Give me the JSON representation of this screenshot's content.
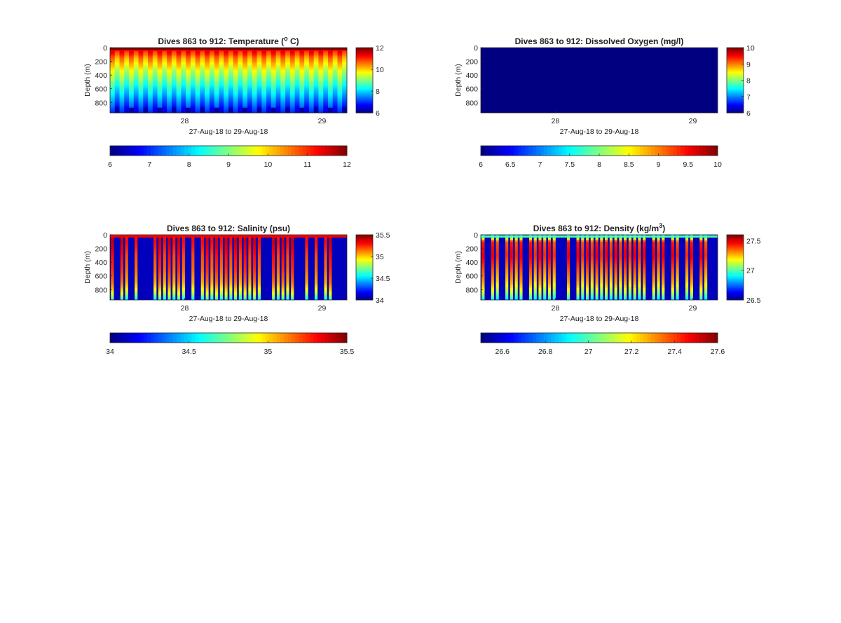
{
  "colormap": "jet",
  "chart_data": [
    {
      "type": "heatmap",
      "title": "Dives 863 to 912: Temperature (",
      "title_sup": "o",
      "title_end": " C)",
      "variable": "temperature",
      "xlabel": "27-Aug-18 to 29-Aug-18",
      "ylabel": "Depth (m)",
      "xticks": [
        "28",
        "29"
      ],
      "yticks": [
        "0",
        "200",
        "400",
        "600",
        "800"
      ],
      "ylim": [
        0,
        950
      ],
      "clim": [
        6,
        12
      ],
      "side_colorbar_ticks": [
        "12",
        "10",
        "8",
        "6"
      ],
      "bottom_colorbar_ticks": [
        "6",
        "7",
        "8",
        "9",
        "10",
        "11",
        "12"
      ],
      "dives": 50,
      "profile": {
        "depth": [
          0,
          50,
          150,
          300,
          500,
          700,
          850,
          950
        ],
        "value": [
          11.8,
          11.2,
          10.4,
          9.6,
          8.7,
          7.8,
          7.1,
          6.6
        ]
      }
    },
    {
      "type": "heatmap",
      "title": "Dives 863 to 912: Dissolved Oxygen (mg/l)",
      "variable": "dissolved_oxygen",
      "xlabel": "27-Aug-18 to 29-Aug-18",
      "ylabel": "Depth (m)",
      "xticks": [
        "28",
        "29"
      ],
      "yticks": [
        "0",
        "200",
        "400",
        "600",
        "800"
      ],
      "ylim": [
        0,
        950
      ],
      "clim": [
        6,
        10
      ],
      "side_colorbar_ticks": [
        "10",
        "9",
        "8",
        "7",
        "6"
      ],
      "bottom_colorbar_ticks": [
        "6",
        "6.5",
        "7",
        "7.5",
        "8",
        "8.5",
        "9",
        "9.5",
        "10"
      ],
      "dives": 50,
      "uniform_value": 6
    },
    {
      "type": "heatmap",
      "title": "Dives 863 to 912: Salinity (psu)",
      "variable": "salinity",
      "xlabel": "27-Aug-18 to 29-Aug-18",
      "ylabel": "Depth (m)",
      "xticks": [
        "28",
        "29"
      ],
      "yticks": [
        "0",
        "200",
        "400",
        "600",
        "800"
      ],
      "ylim": [
        0,
        950
      ],
      "clim": [
        34,
        35.5
      ],
      "side_colorbar_ticks": [
        "35.5",
        "35",
        "34.5",
        "34"
      ],
      "bottom_colorbar_ticks": [
        "34",
        "34.5",
        "35",
        "35.5"
      ],
      "dives": 50,
      "profile": {
        "depth": [
          0,
          100,
          300,
          500,
          700,
          850,
          950
        ],
        "value": [
          35.3,
          35.35,
          35.25,
          35.2,
          35.1,
          34.9,
          34.6
        ]
      }
    },
    {
      "type": "heatmap",
      "title": "Dives 863 to 912: Density (kg/m",
      "title_sup": "3",
      "title_end": ")",
      "variable": "density",
      "xlabel": "27-Aug-18 to 29-Aug-18",
      "ylabel": "Depth (m)",
      "xticks": [
        "28",
        "29"
      ],
      "yticks": [
        "0",
        "200",
        "400",
        "600",
        "800"
      ],
      "ylim": [
        0,
        950
      ],
      "clim": [
        26.5,
        27.6
      ],
      "side_colorbar_ticks": [
        "27.5",
        "27",
        "26.5"
      ],
      "bottom_colorbar_ticks": [
        "26.6",
        "26.8",
        "27",
        "27.2",
        "27.4",
        "27.6"
      ],
      "dives": 50,
      "profile": {
        "depth": [
          0,
          100,
          300,
          500,
          700,
          850,
          950
        ],
        "value": [
          26.8,
          27.4,
          27.45,
          27.35,
          27.25,
          27.1,
          26.9
        ]
      }
    }
  ]
}
